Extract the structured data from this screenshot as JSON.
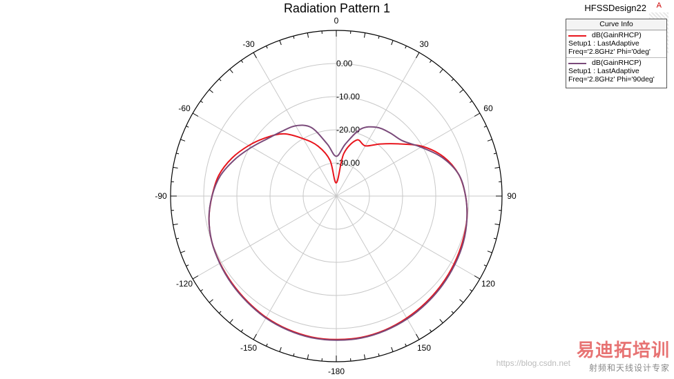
{
  "header": {
    "title": "Radiation Pattern 1",
    "design_name": "HFSSDesign22",
    "logo_mark": "A"
  },
  "legend": {
    "header": "Curve Info",
    "entries": [
      {
        "name": "dB(GainRHCP)",
        "setup": "Setup1 : LastAdaptive",
        "freq": "Freq='2.8GHz' Phi='0deg'",
        "color": "#e8141c"
      },
      {
        "name": "dB(GainRHCP)",
        "setup": "Setup1 : LastAdaptive",
        "freq": "Freq='2.8GHz' Phi='90deg'",
        "color": "#7a4a7a"
      }
    ]
  },
  "watermark": {
    "url": "https://blog.csdn.net",
    "brand": "易迪拓培训",
    "slogan": "射频和天线设计专家"
  },
  "chart_data": {
    "type": "polar",
    "title": "Radiation Pattern 1",
    "r_ticks": [
      0,
      -10,
      -20,
      -30
    ],
    "r_tick_labels": [
      "0.00",
      "-10.00",
      "-20.00",
      "-30.00"
    ],
    "r_range": [
      -40,
      10
    ],
    "angle_ticks": [
      0,
      30,
      60,
      90,
      120,
      150,
      180,
      -150,
      -120,
      -90,
      -60,
      -30
    ],
    "angle_tick_labels": [
      "0",
      "30",
      "60",
      "90",
      "120",
      "150",
      "-180",
      "-150",
      "-120",
      "-90",
      "-60",
      "-30"
    ],
    "grid": true,
    "legend_position": "top-right",
    "series": [
      {
        "name": "dB(GainRHCP) Setup1 : LastAdaptive Freq='2.8GHz' Phi='0deg'",
        "color": "#e8141c",
        "theta": [
          0,
          10,
          20,
          30,
          40,
          50,
          60,
          70,
          80,
          90,
          100,
          110,
          120,
          130,
          140,
          150,
          160,
          170,
          180,
          -170,
          -160,
          -150,
          -140,
          -130,
          -120,
          -110,
          -100,
          -90,
          -80,
          -70,
          -60,
          -50,
          -40,
          -30,
          -20,
          -10,
          0
        ],
        "gain": [
          -36,
          -27,
          -22,
          -22.5,
          -19.5,
          -15.5,
          -10,
          -5.5,
          -2.5,
          -1,
          0,
          0.5,
          1,
          1.5,
          2,
          2.5,
          3,
          3.3,
          3.3,
          3.2,
          2.8,
          2.3,
          1.6,
          1,
          0.5,
          0,
          -1,
          -2.5,
          -4,
          -6.5,
          -9.5,
          -12.5,
          -15.5,
          -20,
          -24,
          -29,
          -36
        ]
      },
      {
        "name": "dB(GainRHCP) Setup1 : LastAdaptive Freq='2.8GHz' Phi='90deg'",
        "color": "#7a4a7a",
        "theta": [
          0,
          10,
          20,
          30,
          40,
          50,
          60,
          70,
          80,
          90,
          100,
          110,
          120,
          130,
          140,
          150,
          160,
          170,
          180,
          -170,
          -160,
          -150,
          -140,
          -130,
          -120,
          -110,
          -100,
          -90,
          -80,
          -70,
          -60,
          -50,
          -40,
          -30,
          -20,
          -10,
          0
        ],
        "gain": [
          -28,
          -24,
          -18.5,
          -16,
          -15,
          -14,
          -10.5,
          -6,
          -2.5,
          -1,
          0,
          0.8,
          1.3,
          1.8,
          2.3,
          2.8,
          3.2,
          3.5,
          3.5,
          3.4,
          3,
          2.5,
          1.8,
          1.2,
          0.6,
          0,
          -1,
          -2.5,
          -4.5,
          -7.5,
          -10.5,
          -13,
          -14.5,
          -15.5,
          -18,
          -24,
          -28
        ]
      }
    ]
  }
}
